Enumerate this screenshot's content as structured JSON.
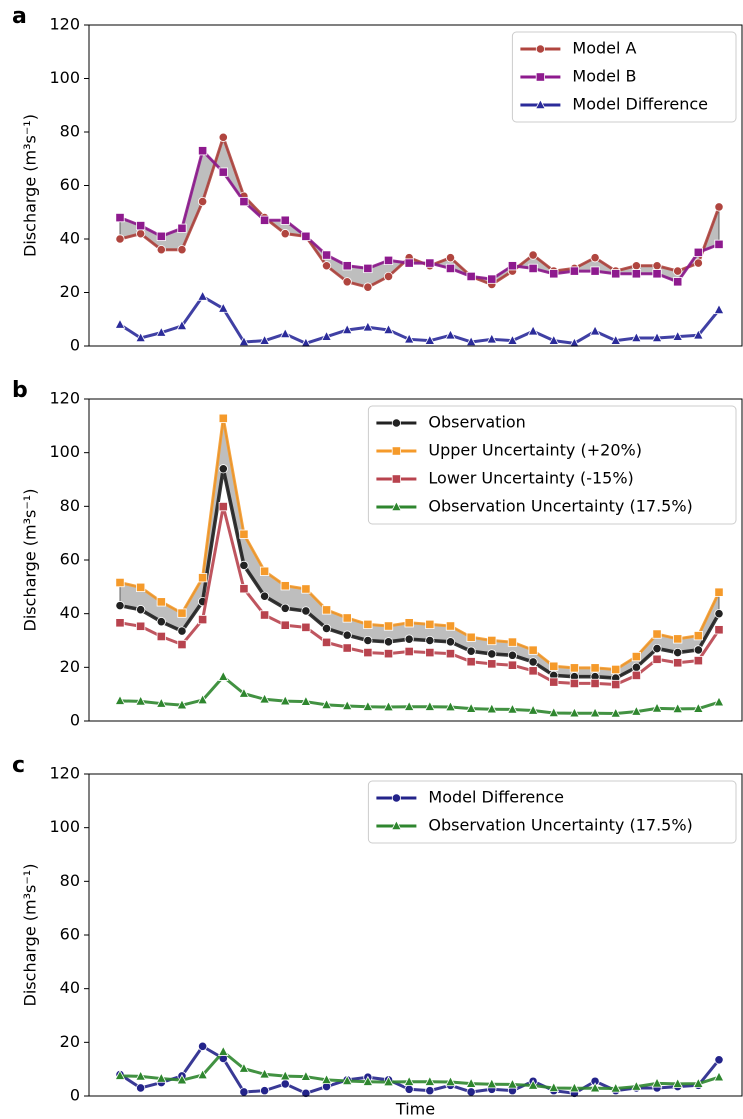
{
  "chart_data": [
    {
      "type": "line",
      "panel_label": "a",
      "y_label": "Discharge (m³s⁻¹)",
      "ylim": [
        0,
        120
      ],
      "yticks": [
        0,
        20,
        40,
        60,
        80,
        100,
        120
      ],
      "legend": "upper right",
      "fill_between": true,
      "series": [
        {
          "name": "Model A",
          "color": "#b0453f",
          "marker": "circle",
          "values": [
            40,
            42,
            36,
            36,
            54,
            78,
            56,
            48,
            42,
            41,
            30,
            24,
            22,
            26,
            33,
            30,
            33,
            26,
            23,
            28,
            34,
            28,
            29,
            33,
            28,
            30,
            30,
            28,
            31,
            52
          ]
        },
        {
          "name": "Model B",
          "color": "#8e1a8e",
          "marker": "square",
          "values": [
            48,
            45,
            41,
            44,
            73,
            65,
            54,
            47,
            47,
            41,
            34,
            30,
            29,
            32,
            31,
            31,
            29,
            26,
            25,
            30,
            29,
            27,
            28,
            28,
            27,
            27,
            27,
            24,
            35,
            38
          ]
        },
        {
          "name": "Model Difference",
          "color": "#2b2b9a",
          "marker": "triangle",
          "values": [
            8,
            3,
            5,
            7.5,
            18.5,
            14,
            1.5,
            2,
            4.5,
            1,
            3.5,
            6,
            7,
            6,
            2.5,
            2,
            4,
            1.5,
            2.5,
            2,
            5.5,
            2,
            1,
            5.5,
            2,
            3,
            3,
            3.5,
            4,
            13.5
          ]
        }
      ]
    },
    {
      "type": "line",
      "panel_label": "b",
      "y_label": "Discharge (m³s⁻¹)",
      "ylim": [
        0,
        120
      ],
      "yticks": [
        0,
        20,
        40,
        60,
        80,
        100,
        120
      ],
      "legend": "upper right",
      "fill_between": true,
      "series": [
        {
          "name": "Observation",
          "color": "#222222",
          "marker": "circle",
          "values": [
            43,
            41.5,
            37,
            33.5,
            44.5,
            94,
            58,
            46.5,
            42,
            41,
            34.5,
            32,
            30,
            29.5,
            30.5,
            30,
            29.5,
            26,
            25,
            24.5,
            22,
            17,
            16.5,
            16.5,
            16,
            20,
            27,
            25.5,
            26.5,
            40
          ]
        },
        {
          "name": "Upper Uncertainty (+20%)",
          "color": "#f59a2a",
          "marker": "square",
          "values": [
            51.6,
            49.8,
            44.4,
            40.2,
            53.4,
            112.8,
            69.6,
            55.8,
            50.4,
            49.2,
            41.4,
            38.4,
            36,
            35.4,
            36.6,
            36,
            35.4,
            31.2,
            30,
            29.4,
            26.4,
            20.4,
            19.8,
            19.8,
            19.2,
            24,
            32.4,
            30.6,
            31.8,
            48
          ]
        },
        {
          "name": "Lower Uncertainty (-15%)",
          "color": "#b8434e",
          "marker": "square",
          "values": [
            36.6,
            35.3,
            31.5,
            28.5,
            37.8,
            79.9,
            49.3,
            39.5,
            35.7,
            34.9,
            29.3,
            27.2,
            25.5,
            25.1,
            25.9,
            25.5,
            25.1,
            22.1,
            21.3,
            20.8,
            18.7,
            14.5,
            14,
            14,
            13.6,
            17,
            23,
            21.7,
            22.5,
            34
          ]
        },
        {
          "name": "Observation Uncertainty (17.5%)",
          "color": "#2e862e",
          "marker": "triangle",
          "values": [
            7.5,
            7.3,
            6.5,
            5.9,
            7.8,
            16.5,
            10.2,
            8.1,
            7.4,
            7.2,
            6,
            5.6,
            5.3,
            5.2,
            5.3,
            5.3,
            5.2,
            4.6,
            4.4,
            4.3,
            3.9,
            3,
            2.9,
            2.9,
            2.8,
            3.5,
            4.7,
            4.5,
            4.6,
            7
          ]
        }
      ]
    },
    {
      "type": "line",
      "panel_label": "c",
      "y_label": "Discharge (m³s⁻¹)",
      "x_label": "Time",
      "ylim": [
        0,
        120
      ],
      "yticks": [
        0,
        20,
        40,
        60,
        80,
        100,
        120
      ],
      "legend": "upper right",
      "fill_between": false,
      "series": [
        {
          "name": "Model Difference",
          "color": "#23238a",
          "marker": "circle",
          "values": [
            8,
            3,
            5,
            7.5,
            18.5,
            14,
            1.5,
            2,
            4.5,
            1,
            3.5,
            6,
            7,
            6,
            2.5,
            2,
            4,
            1.5,
            2.5,
            2,
            5.5,
            2,
            1,
            5.5,
            2,
            3,
            3,
            3.5,
            4,
            13.5
          ]
        },
        {
          "name": "Observation Uncertainty (17.5%)",
          "color": "#2e862e",
          "marker": "triangle",
          "values": [
            7.5,
            7.3,
            6.5,
            5.9,
            7.8,
            16.5,
            10.2,
            8.1,
            7.4,
            7.2,
            6,
            5.6,
            5.3,
            5.2,
            5.3,
            5.3,
            5.2,
            4.6,
            4.4,
            4.3,
            3.9,
            3,
            2.9,
            2.9,
            2.8,
            3.5,
            4.7,
            4.5,
            4.6,
            7
          ]
        }
      ]
    }
  ]
}
